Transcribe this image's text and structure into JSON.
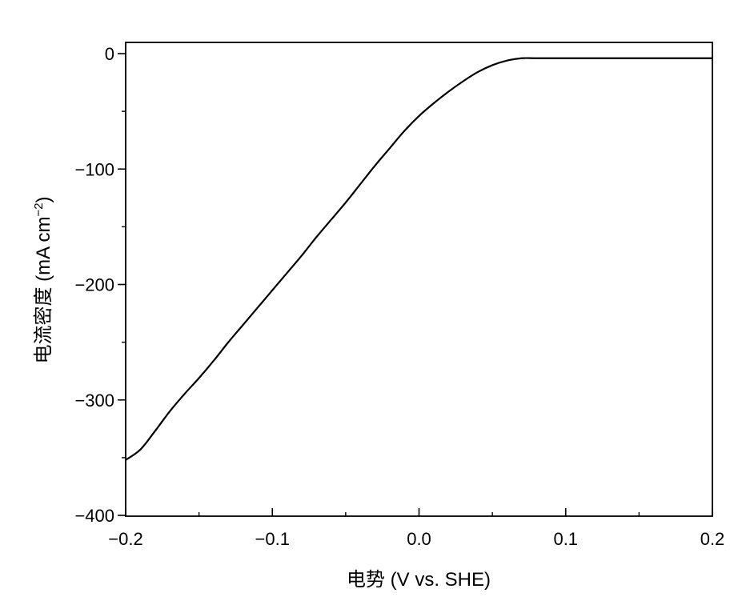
{
  "chart_data": {
    "type": "line",
    "title": "",
    "xlabel": "电势 (V vs. SHE)",
    "ylabel_main": "电流密度 (mA cm",
    "ylabel_sup": "−2",
    "ylabel_close": ")",
    "xlim": [
      -0.2,
      0.2
    ],
    "ylim": [
      -400,
      10
    ],
    "x_ticks": [
      {
        "value": -0.2,
        "label": "−0.2"
      },
      {
        "value": -0.1,
        "label": "−0.1"
      },
      {
        "value": 0.0,
        "label": "0.0"
      },
      {
        "value": 0.1,
        "label": "0.1"
      },
      {
        "value": 0.2,
        "label": "0.2"
      }
    ],
    "x_minor_ticks": [
      -0.15,
      -0.05,
      0.05,
      0.15
    ],
    "y_ticks": [
      {
        "value": 0,
        "label": "0"
      },
      {
        "value": -100,
        "label": "−100"
      },
      {
        "value": -200,
        "label": "−200"
      },
      {
        "value": -300,
        "label": "−300"
      },
      {
        "value": -400,
        "label": "−400"
      }
    ],
    "y_minor_ticks": [
      -50,
      -150,
      -250,
      -350
    ],
    "grid": false,
    "line_color": "#000000",
    "series": [
      {
        "x": [
          -0.2,
          -0.19,
          -0.18,
          -0.17,
          -0.16,
          -0.15,
          -0.14,
          -0.13,
          -0.12,
          -0.11,
          -0.1,
          -0.09,
          -0.08,
          -0.07,
          -0.06,
          -0.05,
          -0.04,
          -0.03,
          -0.02,
          -0.01,
          0.0,
          0.01,
          0.02,
          0.03,
          0.04,
          0.05,
          0.06,
          0.07,
          0.08,
          0.1,
          0.12,
          0.15,
          0.18,
          0.2
        ],
        "y": [
          -352,
          -343,
          -327,
          -310,
          -295,
          -281,
          -266,
          -250,
          -235,
          -220,
          -205,
          -190,
          -175,
          -159,
          -144,
          -129,
          -113,
          -97,
          -82,
          -67,
          -54,
          -43,
          -33,
          -24,
          -16,
          -10,
          -6,
          -4,
          -4,
          -4,
          -4,
          -4,
          -4,
          -4
        ]
      }
    ]
  }
}
